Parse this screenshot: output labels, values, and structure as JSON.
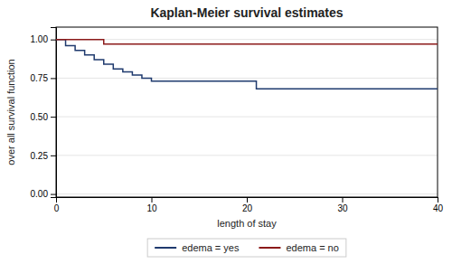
{
  "chart_data": {
    "type": "line",
    "title": "Kaplan-Meier survival estimates",
    "x_label": "length of stay",
    "y_label": "over all survival function",
    "xlim": [
      0,
      40
    ],
    "ylim": [
      -0.02,
      1.08
    ],
    "xticks": [
      0,
      10,
      20,
      30,
      40
    ],
    "yticks": [
      {
        "value": 0.0,
        "label": "0.00"
      },
      {
        "value": 0.25,
        "label": "0.25"
      },
      {
        "value": 0.5,
        "label": "0.50"
      },
      {
        "value": 0.75,
        "label": "0.75"
      },
      {
        "value": 1.0,
        "label": "1.00"
      }
    ],
    "grid": true,
    "legend": "bottom",
    "series": [
      {
        "name": "edema = yes",
        "color": "#1f3a6e",
        "x": [
          0,
          1,
          1,
          2,
          2,
          3,
          3,
          4,
          4,
          5,
          5,
          6,
          6,
          7,
          7,
          8,
          8,
          9,
          9,
          10,
          10,
          21,
          21,
          40
        ],
        "values": [
          1.0,
          1.0,
          0.96,
          0.96,
          0.93,
          0.93,
          0.9,
          0.9,
          0.87,
          0.87,
          0.84,
          0.84,
          0.81,
          0.81,
          0.79,
          0.79,
          0.77,
          0.77,
          0.75,
          0.75,
          0.73,
          0.73,
          0.68,
          0.68
        ]
      },
      {
        "name": "edema = no",
        "color": "#8b1a1a",
        "x": [
          0,
          5,
          5,
          40
        ],
        "values": [
          1.0,
          1.0,
          0.97,
          0.97
        ]
      }
    ]
  }
}
